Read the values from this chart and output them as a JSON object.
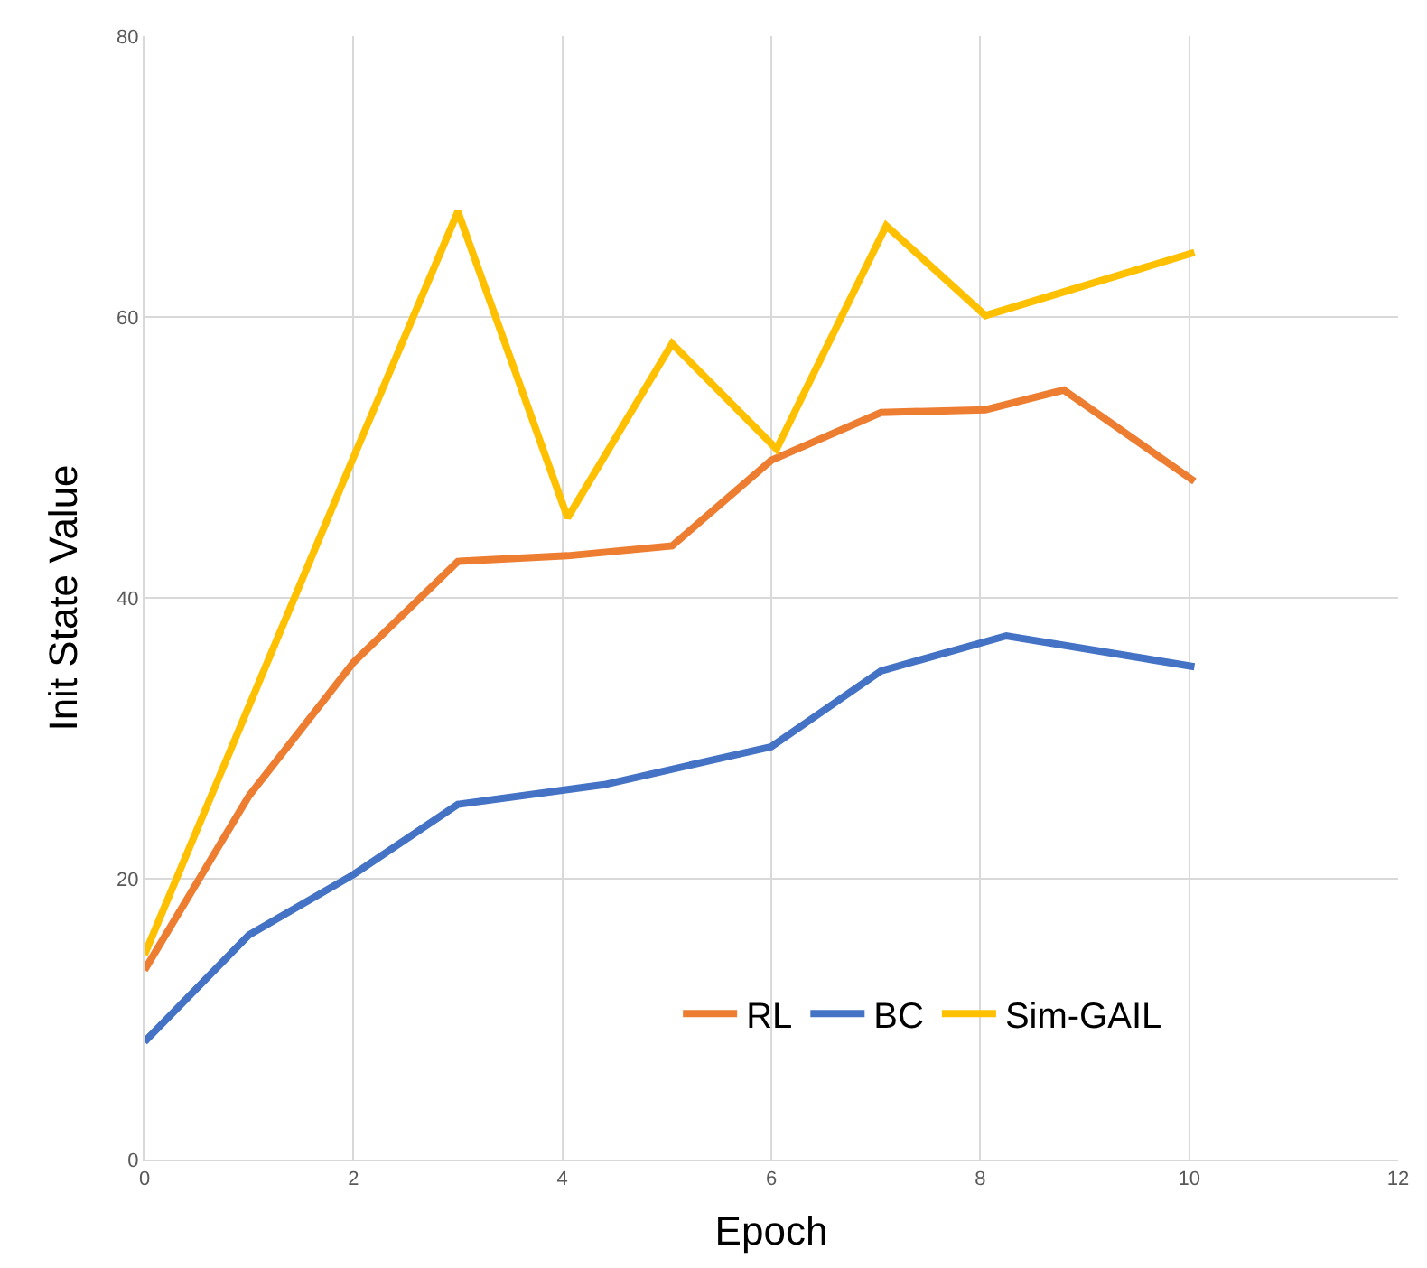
{
  "chart_data": {
    "type": "line",
    "xlabel": "Epoch",
    "ylabel": "Init State Value",
    "xlim": [
      0,
      12
    ],
    "xticks": [
      0,
      2,
      4,
      6,
      8,
      10,
      12
    ],
    "ylim": [
      0,
      80
    ],
    "yticks": [
      0,
      20,
      40,
      60,
      80
    ],
    "grid": true,
    "legend": "bottom right",
    "marker": "none",
    "line_style": "solid",
    "series": [
      {
        "name": "RL",
        "color": "#ed7d31",
        "x": [
          0,
          1,
          2,
          3,
          4.05,
          5.05,
          6,
          7.05,
          8.05,
          8.8,
          10.05
        ],
        "values": [
          13.5,
          25.9,
          35.4,
          42.6,
          43.0,
          43.7,
          49.8,
          53.2,
          53.4,
          54.8,
          48.3
        ]
      },
      {
        "name": "BC",
        "color": "#4472c4",
        "x": [
          0,
          1,
          2,
          3,
          4.4,
          6,
          7.05,
          8.25,
          10.05
        ],
        "values": [
          8.4,
          16.0,
          20.3,
          25.3,
          26.7,
          29.4,
          34.8,
          37.3,
          35.1
        ]
      },
      {
        "name": "Sim-GAIL",
        "color": "#ffc000",
        "x": [
          0,
          2,
          3,
          4.05,
          5.05,
          6.05,
          7.1,
          8.05,
          10.05
        ],
        "values": [
          14.6,
          50.0,
          67.5,
          45.7,
          58.1,
          50.6,
          66.5,
          60.1,
          64.6
        ]
      }
    ]
  }
}
